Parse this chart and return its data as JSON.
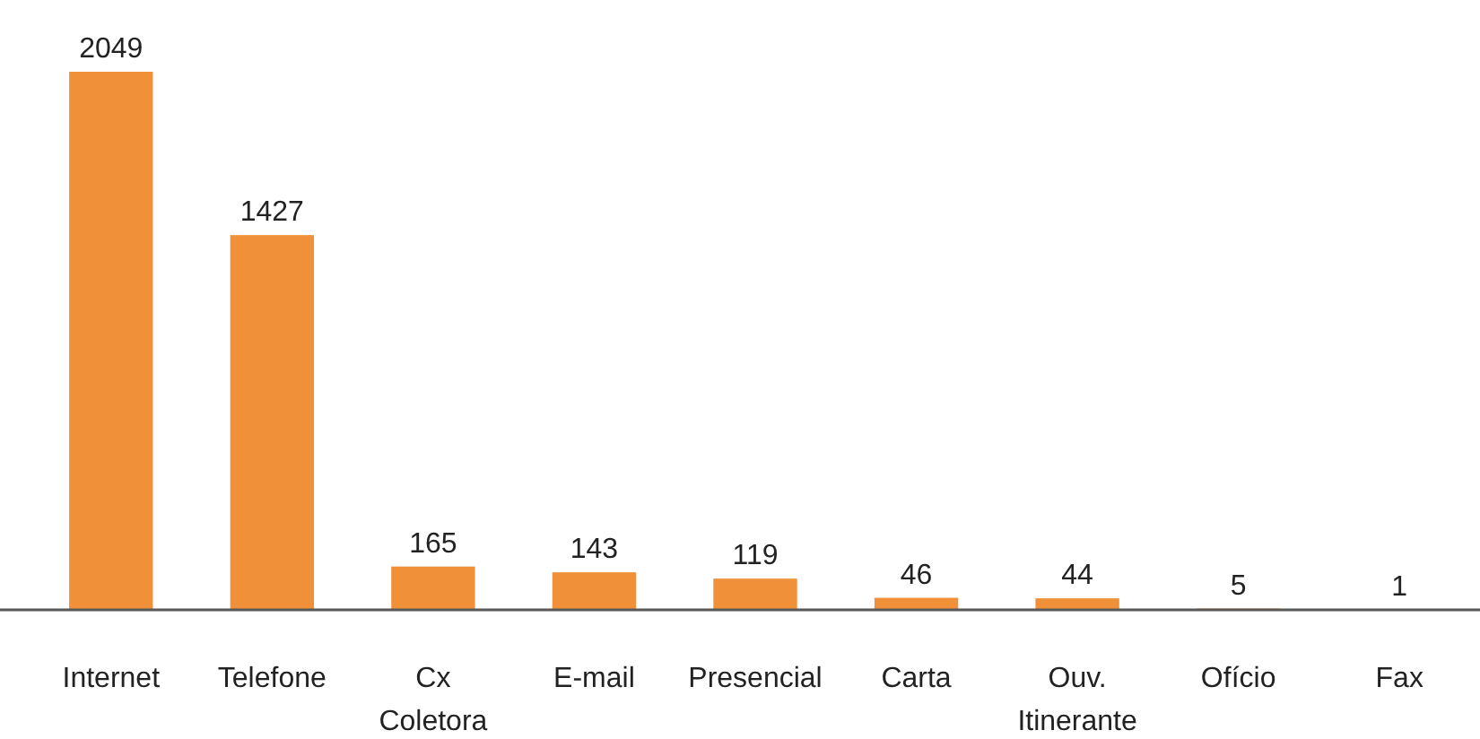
{
  "chart_data": {
    "type": "bar",
    "categories": [
      "Internet",
      "Telefone",
      "Cx Coletora",
      "E-mail",
      "Presencial",
      "Carta",
      "Ouv. Itinerante",
      "Ofício",
      "Fax"
    ],
    "values": [
      2049,
      1427,
      165,
      143,
      119,
      46,
      44,
      5,
      1
    ],
    "color": "#f0913a",
    "data_labels": true
  }
}
